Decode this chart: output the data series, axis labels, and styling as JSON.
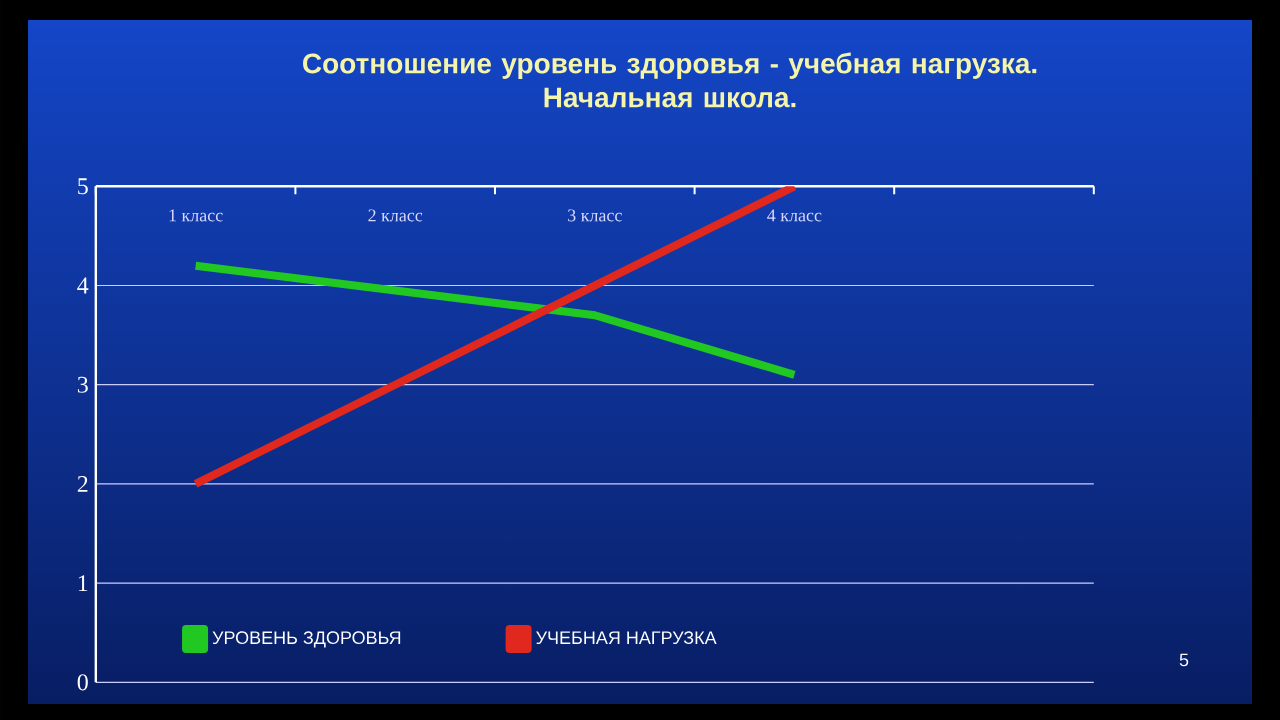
{
  "chart_data": {
    "type": "line",
    "title": "Соотношение  уровень здоровья -  учебная нагрузка.\nНачальная школа.",
    "categories": [
      "1 класс",
      "2 класс",
      "3 класс",
      "4 класс",
      null
    ],
    "series": [
      {
        "name": "УРОВЕНЬ ЗДОРОВЬЯ",
        "color": "#22c822",
        "values": [
          4.2,
          3.95,
          3.7,
          3.1,
          null
        ]
      },
      {
        "name": "УЧЕБНАЯ НАГРУЗКА",
        "color": "#e0281e",
        "values": [
          2,
          3,
          4,
          5,
          null
        ]
      }
    ],
    "ylim": [
      0,
      5
    ],
    "yticks": [
      0,
      1,
      2,
      3,
      4,
      5
    ],
    "grid": "y",
    "legend": "bottom",
    "marker": "none",
    "line_style": "solid",
    "annotations": [
      "5"
    ]
  }
}
